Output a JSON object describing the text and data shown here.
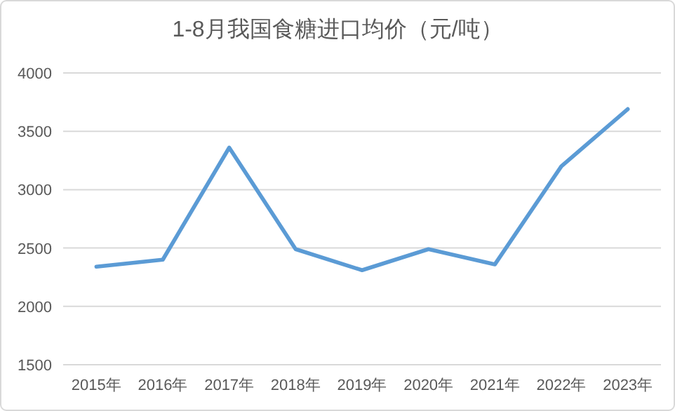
{
  "chart_data": {
    "type": "line",
    "title": "1-8月我国食糖进口均价（元/吨）",
    "categories": [
      "2015年",
      "2016年",
      "2017年",
      "2018年",
      "2019年",
      "2020年",
      "2021年",
      "2022年",
      "2023年"
    ],
    "series": [
      {
        "color": "#5b9bd5",
        "values": [
          2340,
          2400,
          3360,
          2490,
          2310,
          2490,
          2360,
          3200,
          3690
        ]
      }
    ],
    "ylim": [
      1500,
      4000
    ],
    "yticks": [
      1500,
      2000,
      2500,
      3000,
      3500,
      4000
    ],
    "grid": "y",
    "marker": "none",
    "line_style": "solid"
  }
}
